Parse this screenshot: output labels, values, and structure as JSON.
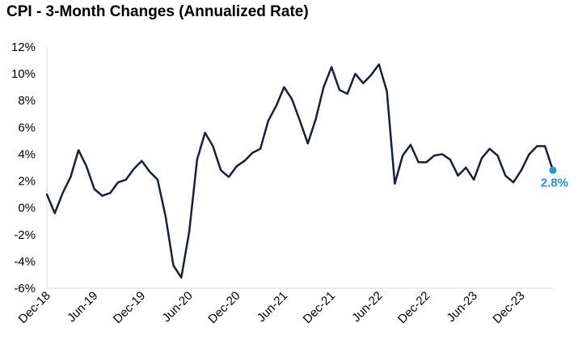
{
  "chart_data": {
    "type": "line",
    "title": "CPI - 3-Month Changes (Annualized Rate)",
    "xlabel": "",
    "ylabel": "",
    "ylim": [
      -6,
      12
    ],
    "yticks": [
      -6,
      -4,
      -2,
      0,
      2,
      4,
      6,
      8,
      10,
      12
    ],
    "ytick_labels": [
      "-6%",
      "-4%",
      "-2%",
      "0%",
      "2%",
      "4%",
      "6%",
      "8%",
      "10%",
      "12%"
    ],
    "xtick_labels": [
      "Dec-18",
      "Jun-19",
      "Dec-19",
      "Jun-20",
      "Dec-20",
      "Jun-21",
      "Dec-21",
      "Jun-22",
      "Dec-22",
      "Jun-23",
      "Dec-23"
    ],
    "grid": false,
    "series": [
      {
        "color": "#14213d",
        "x": [
          "Dec-18",
          "Jan-19",
          "Feb-19",
          "Mar-19",
          "Apr-19",
          "May-19",
          "Jun-19",
          "Jul-19",
          "Aug-19",
          "Sep-19",
          "Oct-19",
          "Nov-19",
          "Dec-19",
          "Jan-20",
          "Feb-20",
          "Mar-20",
          "Apr-20",
          "May-20",
          "Jun-20",
          "Jul-20",
          "Aug-20",
          "Sep-20",
          "Oct-20",
          "Nov-20",
          "Dec-20",
          "Jan-21",
          "Feb-21",
          "Mar-21",
          "Apr-21",
          "May-21",
          "Jun-21",
          "Jul-21",
          "Aug-21",
          "Sep-21",
          "Oct-21",
          "Nov-21",
          "Dec-21",
          "Jan-22",
          "Feb-22",
          "Mar-22",
          "Apr-22",
          "May-22",
          "Jun-22",
          "Jul-22",
          "Aug-22",
          "Sep-22",
          "Oct-22",
          "Nov-22",
          "Dec-22",
          "Jan-23",
          "Feb-23",
          "Mar-23",
          "Apr-23",
          "May-23",
          "Jun-23",
          "Jul-23",
          "Aug-23",
          "Sep-23",
          "Oct-23",
          "Nov-23",
          "Dec-23",
          "Jan-24",
          "Feb-24",
          "Mar-24",
          "Apr-24"
        ],
        "values": [
          1.0,
          -0.4,
          1.1,
          2.3,
          4.3,
          3.1,
          1.4,
          0.9,
          1.1,
          1.9,
          2.1,
          2.9,
          3.5,
          2.7,
          2.1,
          -0.6,
          -4.3,
          -5.2,
          -1.8,
          3.6,
          5.6,
          4.6,
          2.8,
          2.3,
          3.1,
          3.5,
          4.1,
          4.4,
          6.5,
          7.6,
          9.0,
          8.1,
          6.5,
          4.8,
          6.6,
          9.0,
          10.5,
          8.8,
          8.5,
          10.0,
          9.3,
          9.9,
          10.7,
          8.7,
          1.8,
          3.9,
          4.7,
          3.4,
          3.4,
          3.9,
          4.0,
          3.6,
          2.4,
          3.0,
          2.1,
          3.7,
          4.4,
          3.9,
          2.4,
          1.9,
          2.8,
          4.0,
          4.6,
          4.6,
          2.8
        ]
      }
    ],
    "end_label": {
      "text": "2.8%",
      "value": 2.8,
      "color": "#1e98dd"
    }
  }
}
